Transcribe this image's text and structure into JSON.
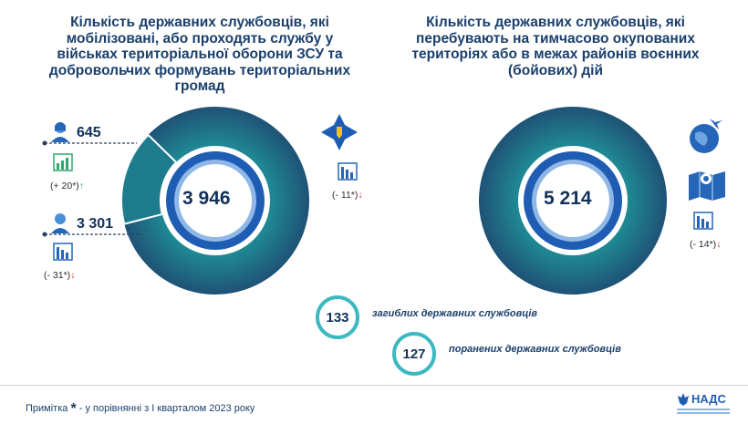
{
  "left": {
    "title": "Кількість державних службовців, які мобілізовані, або проходять службу у військах територіальної оборони ЗСУ та добровольчих формувань територіальних громад",
    "total": "3 946",
    "women_count": "645",
    "women_change": "(+ 20*)",
    "men_count": "3 301",
    "men_change": "(- 31*)",
    "total_change": "(- 11*)"
  },
  "right": {
    "title": "Кількість державних службовців, які перебувають на тимчасово окупованих територіях або в межах районів воєнних (бойових) дій",
    "total": "5 214",
    "total_change": "(- 14*)"
  },
  "badges": [
    {
      "value": "133",
      "label": "загиблих державних службовців"
    },
    {
      "value": "127",
      "label": "поранених державних службовців"
    }
  ],
  "footer": {
    "note_prefix": "Примітка",
    "note_star": "*",
    "note_text": " - у порівнянні з І кварталом 2023 року",
    "logo_text": "НАДС"
  },
  "colors": {
    "dark": "#12325c",
    "teal": "#3cb8c1",
    "up": "#22a05a",
    "down": "#d32828"
  },
  "chart_data": [
    {
      "type": "pie",
      "categories": [
        "3 301",
        "645"
      ],
      "values": [
        3301,
        645
      ],
      "total": 3946,
      "changes": [
        -31,
        20
      ],
      "total_change": -11
    },
    {
      "type": "pie",
      "categories": [
        "5 214"
      ],
      "values": [
        5214
      ],
      "total": 5214,
      "total_change": -14
    }
  ]
}
